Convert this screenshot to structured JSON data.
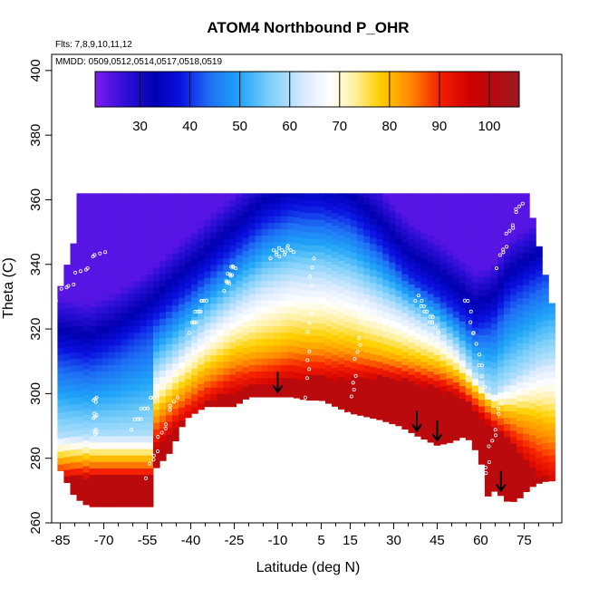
{
  "chart_data": {
    "type": "heatmap",
    "title": "ATOM4 Northbound P_OHR",
    "annotations": {
      "flights": "Flts: 7,8,9,10,11,12",
      "dates": "MMDD: 0509,0512,0514,0517,0518,0519"
    },
    "xlabel": "Latitude (deg N)",
    "ylabel": "Theta (C)",
    "xlim": [
      -88,
      88
    ],
    "ylim": [
      260,
      405
    ],
    "x_ticks": [
      -85,
      -70,
      -55,
      -40,
      -25,
      -10,
      5,
      15,
      30,
      45,
      60,
      75
    ],
    "y_ticks": [
      260,
      280,
      300,
      320,
      340,
      360,
      380,
      400
    ],
    "colorbar": {
      "range": [
        21,
        106
      ],
      "ticks": [
        30,
        40,
        50,
        60,
        70,
        80,
        90,
        100
      ],
      "stops": [
        {
          "v": 21,
          "c": "#7F1AF0"
        },
        {
          "v": 27,
          "c": "#2E0FD8"
        },
        {
          "v": 33,
          "c": "#0000B0"
        },
        {
          "v": 38,
          "c": "#0A10E0"
        },
        {
          "v": 44,
          "c": "#1E70F5"
        },
        {
          "v": 50,
          "c": "#20A5F8"
        },
        {
          "v": 56,
          "c": "#7CCFFA"
        },
        {
          "v": 63,
          "c": "#DCEBFF"
        },
        {
          "v": 68,
          "c": "#FFFFFF"
        },
        {
          "v": 73,
          "c": "#FFF0A0"
        },
        {
          "v": 78,
          "c": "#FFD000"
        },
        {
          "v": 84,
          "c": "#FF8C00"
        },
        {
          "v": 90,
          "c": "#F52000"
        },
        {
          "v": 96,
          "c": "#D00000"
        },
        {
          "v": 106,
          "c": "#9B1820"
        }
      ]
    },
    "field_model": {
      "top_theta": 362,
      "bottom_boundary": [
        [
          -86,
          278
        ],
        [
          -80,
          268
        ],
        [
          -75,
          265
        ],
        [
          -53,
          265
        ],
        [
          -53,
          276
        ],
        [
          -47,
          282
        ],
        [
          -42,
          292
        ],
        [
          -35,
          296
        ],
        [
          -25,
          296
        ],
        [
          -20,
          299
        ],
        [
          -10,
          299
        ],
        [
          -5,
          299
        ],
        [
          0,
          298
        ],
        [
          5,
          298
        ],
        [
          15,
          294
        ],
        [
          25,
          292
        ],
        [
          32,
          290
        ],
        [
          38,
          287
        ],
        [
          45,
          284
        ],
        [
          50,
          285
        ],
        [
          55,
          287
        ],
        [
          60,
          280
        ],
        [
          62,
          268
        ],
        [
          65,
          270
        ],
        [
          70,
          266
        ],
        [
          74,
          268
        ],
        [
          76,
          270
        ],
        [
          79,
          272
        ],
        [
          83,
          273
        ]
      ],
      "contours": {
        "theta_95": [
          [
            -86,
            280
          ],
          [
            -80,
            277
          ],
          [
            -70,
            277
          ],
          [
            -60,
            280
          ],
          [
            -53,
            283
          ],
          [
            -45,
            290
          ],
          [
            -35,
            297
          ],
          [
            -25,
            301
          ],
          [
            -15,
            303
          ],
          [
            -5,
            305
          ],
          [
            5,
            305
          ],
          [
            15,
            305
          ],
          [
            25,
            305
          ],
          [
            35,
            304
          ],
          [
            45,
            302
          ],
          [
            52,
            300
          ],
          [
            58,
            295
          ],
          [
            64,
            290
          ],
          [
            70,
            285
          ],
          [
            80,
            275
          ],
          [
            86,
            272
          ]
        ],
        "theta_80": [
          [
            -86,
            290
          ],
          [
            -75,
            285
          ],
          [
            -65,
            288
          ],
          [
            -55,
            292
          ],
          [
            -45,
            300
          ],
          [
            -35,
            307
          ],
          [
            -25,
            312
          ],
          [
            -15,
            314
          ],
          [
            -5,
            316
          ],
          [
            5,
            316
          ],
          [
            15,
            315
          ],
          [
            25,
            313
          ],
          [
            35,
            311
          ],
          [
            45,
            309
          ],
          [
            52,
            306
          ],
          [
            58,
            301
          ],
          [
            64,
            296
          ],
          [
            70,
            294
          ],
          [
            80,
            292
          ],
          [
            86,
            290
          ]
        ],
        "theta_60": [
          [
            -86,
            300
          ],
          [
            -75,
            296
          ],
          [
            -65,
            298
          ],
          [
            -55,
            304
          ],
          [
            -45,
            312
          ],
          [
            -35,
            321
          ],
          [
            -25,
            328
          ],
          [
            -15,
            334
          ],
          [
            -5,
            337
          ],
          [
            5,
            337
          ],
          [
            15,
            335
          ],
          [
            25,
            330
          ],
          [
            35,
            325
          ],
          [
            45,
            320
          ],
          [
            52,
            314
          ],
          [
            58,
            306
          ],
          [
            64,
            300
          ],
          [
            70,
            304
          ],
          [
            80,
            310
          ],
          [
            86,
            312
          ]
        ],
        "theta_40": [
          [
            -86,
            312
          ],
          [
            -75,
            310
          ],
          [
            -65,
            314
          ],
          [
            -55,
            320
          ],
          [
            -45,
            328
          ],
          [
            -35,
            336
          ],
          [
            -25,
            344
          ],
          [
            -15,
            352
          ],
          [
            -5,
            356
          ],
          [
            5,
            356
          ],
          [
            15,
            354
          ],
          [
            25,
            346
          ],
          [
            35,
            336
          ],
          [
            45,
            330
          ],
          [
            52,
            325
          ],
          [
            58,
            320
          ],
          [
            64,
            322
          ],
          [
            70,
            330
          ],
          [
            80,
            336
          ],
          [
            86,
            340
          ]
        ]
      },
      "southern_columns": {
        "x_max": -53,
        "bottom": 265,
        "theta_95": 274,
        "theta_80": 280,
        "theta_60": 287
      }
    },
    "arrows_lat": [
      -10,
      38,
      45,
      67
    ]
  }
}
